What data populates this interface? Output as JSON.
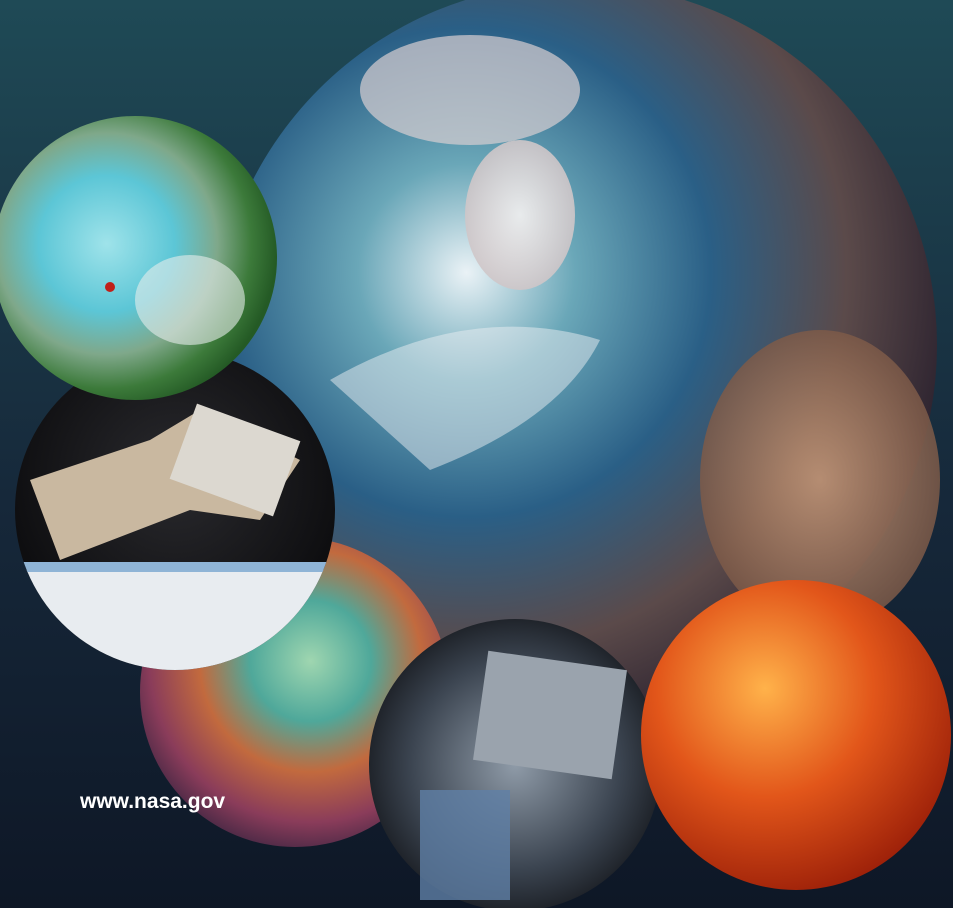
{
  "footer": {
    "url": "www.nasa.gov"
  }
}
